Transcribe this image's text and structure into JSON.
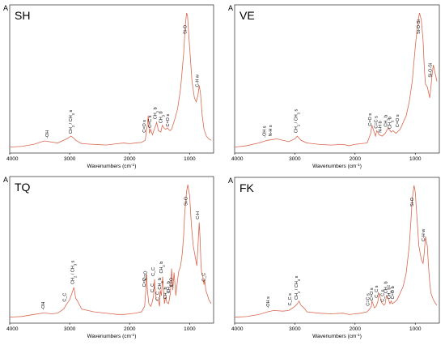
{
  "chart_data": [
    {
      "type": "line",
      "panel_letter": "A",
      "title": "SH",
      "xlabel": "Wavenumbers (cm⁻¹)",
      "ylabel": "",
      "xlim": [
        4000,
        600
      ],
      "x_reversed": true,
      "xticks": [
        4000,
        3000,
        2000,
        1000
      ],
      "y_ticks_shown": false,
      "grid": false,
      "legend": "none",
      "line_color": "#d9674f",
      "series": [
        {
          "x": [
            4000,
            3800,
            3600,
            3500,
            3420,
            3350,
            3200,
            3050,
            2980,
            2930,
            2900,
            2800,
            2600,
            2400,
            2300,
            2200,
            2100,
            2000,
            1900,
            1800,
            1740,
            1700,
            1690,
            1670,
            1650,
            1620,
            1580,
            1550,
            1520,
            1480,
            1455,
            1430,
            1400,
            1370,
            1330,
            1300,
            1250,
            1200,
            1150,
            1100,
            1070,
            1050,
            1035,
            1000,
            960,
            920,
            890,
            860,
            840,
            820,
            790,
            760,
            720,
            680,
            640
          ],
          "y": [
            0.02,
            0.025,
            0.04,
            0.055,
            0.065,
            0.06,
            0.05,
            0.08,
            0.1,
            0.085,
            0.07,
            0.045,
            0.04,
            0.035,
            0.04,
            0.045,
            0.05,
            0.045,
            0.05,
            0.055,
            0.07,
            0.2,
            0.25,
            0.12,
            0.15,
            0.11,
            0.16,
            0.2,
            0.14,
            0.13,
            0.18,
            0.16,
            0.15,
            0.16,
            0.14,
            0.15,
            0.22,
            0.3,
            0.45,
            0.7,
            0.92,
            1.0,
            0.98,
            0.75,
            0.5,
            0.38,
            0.35,
            0.4,
            0.47,
            0.42,
            0.25,
            0.15,
            0.1,
            0.08,
            0.07
          ]
        }
      ],
      "annotations": [
        {
          "text": "-OH",
          "x": 3350
        },
        {
          "text": "CH₂ / CH₃ s",
          "x": 2960
        },
        {
          "text": "C=O s",
          "x": 1730
        },
        {
          "text": "C=C s",
          "x": 1640
        },
        {
          "text": "CH₂ b",
          "x": 1550
        },
        {
          "text": "CH₃ b",
          "x": 1460
        },
        {
          "text": "C=O s",
          "x": 1340
        },
        {
          "text": "Si-O",
          "x": 1050
        },
        {
          "text": "C-H w",
          "x": 850
        }
      ]
    },
    {
      "type": "line",
      "panel_letter": "A",
      "title": "VE",
      "xlabel": "Wavenumbers (cm⁻¹)",
      "ylabel": "",
      "xlim": [
        4000,
        600
      ],
      "x_reversed": true,
      "xticks": [
        4000,
        3000,
        2000,
        1000
      ],
      "y_ticks_shown": false,
      "grid": false,
      "legend": "none",
      "line_color": "#d9674f",
      "series": [
        {
          "x": [
            4000,
            3800,
            3600,
            3450,
            3300,
            3100,
            3000,
            2960,
            2930,
            2900,
            2800,
            2600,
            2400,
            2200,
            2100,
            2000,
            1900,
            1800,
            1740,
            1720,
            1690,
            1660,
            1640,
            1600,
            1550,
            1500,
            1450,
            1400,
            1370,
            1320,
            1250,
            1200,
            1150,
            1100,
            1050,
            1000,
            960,
            930,
            900,
            870,
            850,
            830,
            800,
            780,
            760,
            740,
            720,
            700,
            680,
            640
          ],
          "y": [
            0.02,
            0.03,
            0.05,
            0.07,
            0.08,
            0.06,
            0.08,
            0.1,
            0.085,
            0.07,
            0.05,
            0.04,
            0.035,
            0.04,
            0.03,
            0.04,
            0.045,
            0.05,
            0.12,
            0.18,
            0.14,
            0.1,
            0.14,
            0.11,
            0.1,
            0.12,
            0.16,
            0.13,
            0.14,
            0.12,
            0.15,
            0.2,
            0.25,
            0.35,
            0.5,
            0.75,
            0.92,
            1.0,
            0.95,
            0.8,
            0.6,
            0.48,
            0.46,
            0.42,
            0.38,
            0.46,
            0.55,
            0.62,
            0.58,
            0.5
          ]
        }
      ],
      "annotations": [
        {
          "text": "-OH s",
          "x": 3480
        },
        {
          "text": "N-H s",
          "x": 3380
        },
        {
          "text": "CH₂ / CH₃ s",
          "x": 2960
        },
        {
          "text": "C=O s",
          "x": 1730
        },
        {
          "text": "C=C s",
          "x": 1630
        },
        {
          "text": "N-H b",
          "x": 1560
        },
        {
          "text": "CH₂ b",
          "x": 1470
        },
        {
          "text": "CH₃ b",
          "x": 1400
        },
        {
          "text": "C=O s",
          "x": 1270
        },
        {
          "text": "Si-O-Si",
          "x": 920
        },
        {
          "text": "Si-O-Si",
          "x": 730
        }
      ]
    },
    {
      "type": "line",
      "panel_letter": "A",
      "title": "TQ",
      "xlabel": "Wavenumbers (cm⁻¹)",
      "ylabel": "",
      "xlim": [
        4000,
        600
      ],
      "x_reversed": true,
      "xticks": [
        4000,
        3000,
        2000,
        1000
      ],
      "y_ticks_shown": false,
      "grid": false,
      "legend": "none",
      "line_color": "#d9674f",
      "series": [
        {
          "x": [
            4000,
            3800,
            3600,
            3450,
            3400,
            3300,
            3200,
            3100,
            3060,
            3030,
            3000,
            2960,
            2930,
            2900,
            2870,
            2800,
            2600,
            2400,
            2300,
            2200,
            2100,
            2000,
            1900,
            1800,
            1750,
            1730,
            1720,
            1700,
            1680,
            1650,
            1630,
            1600,
            1585,
            1560,
            1520,
            1500,
            1490,
            1470,
            1450,
            1420,
            1400,
            1380,
            1350,
            1320,
            1300,
            1280,
            1260,
            1250,
            1230,
            1200,
            1180,
            1150,
            1120,
            1100,
            1080,
            1050,
            1030,
            1000,
            970,
            940,
            900,
            880,
            860,
            840,
            825,
            810,
            800,
            780,
            760,
            750,
            730,
            700,
            680,
            640
          ],
          "y": [
            0.02,
            0.025,
            0.04,
            0.05,
            0.05,
            0.045,
            0.05,
            0.08,
            0.11,
            0.13,
            0.15,
            0.2,
            0.24,
            0.16,
            0.14,
            0.08,
            0.06,
            0.05,
            0.045,
            0.04,
            0.04,
            0.045,
            0.05,
            0.06,
            0.1,
            0.22,
            0.34,
            0.2,
            0.12,
            0.1,
            0.12,
            0.18,
            0.3,
            0.15,
            0.14,
            0.1,
            0.22,
            0.18,
            0.32,
            0.12,
            0.17,
            0.13,
            0.12,
            0.2,
            0.38,
            0.22,
            0.35,
            0.3,
            0.18,
            0.3,
            0.36,
            0.4,
            0.5,
            0.62,
            0.8,
            0.95,
            1.0,
            0.92,
            0.7,
            0.55,
            0.45,
            0.4,
            0.55,
            0.72,
            0.6,
            0.4,
            0.35,
            0.32,
            0.26,
            0.3,
            0.22,
            0.18,
            0.15,
            0.12
          ]
        }
      ],
      "annotations": [
        {
          "text": "-OH",
          "x": 3420
        },
        {
          "text": "C_C",
          "x": 3060
        },
        {
          "text": "CH₂ / CH₃ s",
          "x": 2930
        },
        {
          "text": "C=C",
          "x": 1730
        },
        {
          "text": "C=O",
          "x": 1710
        },
        {
          "text": "C_C",
          "x": 1600
        },
        {
          "text": "C_C",
          "x": 1585
        },
        {
          "text": "C_C",
          "x": 1510
        },
        {
          "text": "CH₂ b",
          "x": 1450
        },
        {
          "text": "CH₃ b",
          "x": 1480
        },
        {
          "text": "CH₂ b",
          "x": 1380
        },
        {
          "text": "CH₃ b",
          "x": 1330
        },
        {
          "text": "C=O",
          "x": 1280
        },
        {
          "text": "Si-O",
          "x": 1040
        },
        {
          "text": "C-H",
          "x": 840
        },
        {
          "text": "C_C",
          "x": 740
        }
      ]
    },
    {
      "type": "line",
      "panel_letter": "A",
      "title": "FK",
      "xlabel": "Wavenumbers (cm⁻¹)",
      "ylabel": "",
      "xlim": [
        4000,
        600
      ],
      "x_reversed": true,
      "xticks": [
        4000,
        3000,
        2000,
        1000
      ],
      "y_ticks_shown": false,
      "grid": false,
      "legend": "none",
      "line_color": "#d9674f",
      "series": [
        {
          "x": [
            4000,
            3800,
            3600,
            3450,
            3350,
            3200,
            3100,
            3050,
            3000,
            2960,
            2930,
            2900,
            2850,
            2800,
            2600,
            2400,
            2200,
            2100,
            2000,
            1900,
            1800,
            1760,
            1730,
            1720,
            1700,
            1680,
            1650,
            1620,
            1600,
            1560,
            1520,
            1500,
            1480,
            1450,
            1420,
            1400,
            1380,
            1350,
            1300,
            1250,
            1200,
            1150,
            1100,
            1070,
            1050,
            1020,
            1000,
            970,
            940,
            900,
            870,
            850,
            830,
            800,
            780,
            760,
            740,
            700,
            660,
            640
          ],
          "y": [
            0.02,
            0.025,
            0.04,
            0.06,
            0.07,
            0.065,
            0.07,
            0.085,
            0.1,
            0.12,
            0.14,
            0.11,
            0.09,
            0.06,
            0.05,
            0.045,
            0.05,
            0.04,
            0.045,
            0.05,
            0.06,
            0.08,
            0.1,
            0.14,
            0.12,
            0.09,
            0.1,
            0.14,
            0.2,
            0.13,
            0.11,
            0.12,
            0.18,
            0.16,
            0.12,
            0.14,
            0.12,
            0.13,
            0.15,
            0.2,
            0.25,
            0.35,
            0.55,
            0.75,
            0.9,
            1.0,
            0.95,
            0.75,
            0.55,
            0.45,
            0.42,
            0.5,
            0.62,
            0.55,
            0.4,
            0.28,
            0.2,
            0.15,
            0.12,
            0.11
          ]
        }
      ],
      "annotations": [
        {
          "text": "-OH s",
          "x": 3420
        },
        {
          "text": "C_C s",
          "x": 3060
        },
        {
          "text": "CH₂ / CH₃ s",
          "x": 2950
        },
        {
          "text": "C=C s",
          "x": 1760
        },
        {
          "text": "C=O s",
          "x": 1700
        },
        {
          "text": "C_C s",
          "x": 1620
        },
        {
          "text": "C_C s",
          "x": 1520
        },
        {
          "text": "CH₂ b",
          "x": 1470
        },
        {
          "text": "CH₃ b",
          "x": 1410
        },
        {
          "text": "C=O b",
          "x": 1350
        },
        {
          "text": "Si-O",
          "x": 1030
        },
        {
          "text": "C-H w",
          "x": 840
        }
      ]
    }
  ]
}
